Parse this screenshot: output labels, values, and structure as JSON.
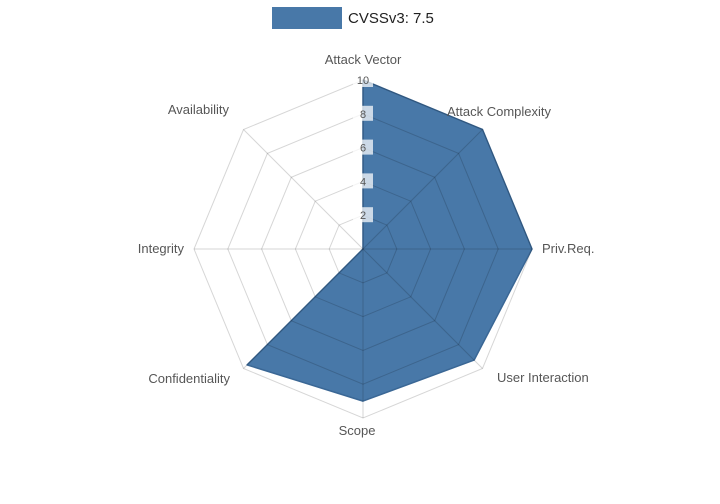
{
  "chart_data": {
    "type": "radar",
    "title": "",
    "legend": {
      "label": "CVSSv3: 7.5",
      "position": "top-center"
    },
    "categories": [
      "Attack Vector",
      "Attack Complexity",
      "Priv.Req.",
      "User Interaction",
      "Scope",
      "Confidentiality",
      "Integrity",
      "Availability"
    ],
    "series": [
      {
        "name": "CVSSv3: 7.5",
        "values": [
          10,
          10,
          10,
          9.3,
          9,
          9.7,
          0,
          0
        ],
        "color": "#4878A8",
        "outline_color": "#3A6795"
      }
    ],
    "radial_ticks": [
      2,
      4,
      6,
      8,
      10
    ],
    "rlim": [
      0,
      10
    ],
    "grid": true,
    "grid_shape": "polygon",
    "axis_label_color": "#565656",
    "tick_label_color": "#555555",
    "tick_box_color": "#ffffff",
    "background": "#ffffff"
  }
}
